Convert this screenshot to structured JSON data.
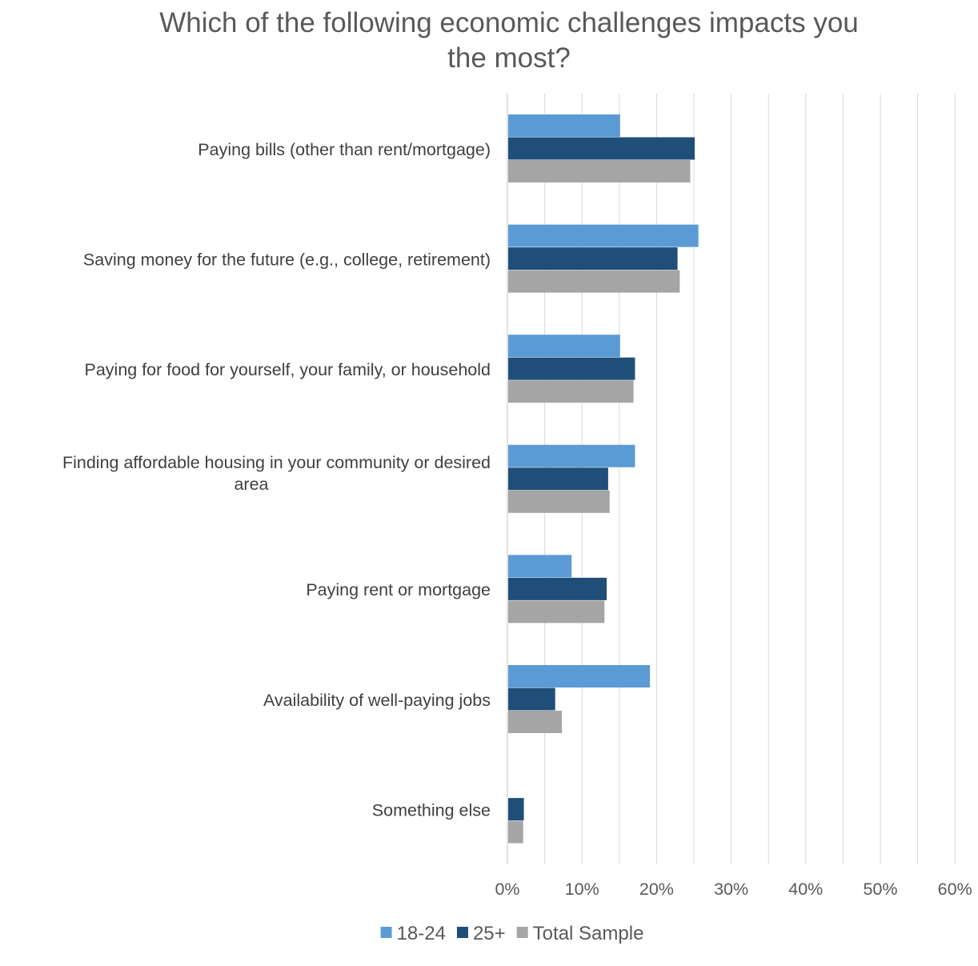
{
  "chart_data": {
    "type": "bar",
    "orientation": "horizontal",
    "title": "Which of the following economic challenges impacts you the most?",
    "title_lines": [
      "Which of the following economic challenges impacts you",
      "the most?"
    ],
    "categories": [
      "Paying bills (other than rent/mortgage)",
      "Saving money for the future (e.g., college, retirement)",
      "Paying for food for yourself, your family, or household",
      "Finding affordable housing in your community or desired area",
      "Paying rent or mortgage",
      "Availability of well-paying jobs",
      "Something else"
    ],
    "category_label_lines": [
      [
        "Paying bills (other than rent/mortgage)"
      ],
      [
        "Saving money for the future (e.g., college, retirement)"
      ],
      [
        "Paying for food for yourself, your family, or household"
      ],
      [
        "Finding affordable housing in your community or desired",
        "area"
      ],
      [
        "Paying rent or mortgage"
      ],
      [
        "Availability of well-paying jobs"
      ],
      [
        "Something else"
      ]
    ],
    "series": [
      {
        "name": "18-24",
        "color": "#5B9BD5",
        "values": [
          15,
          25.5,
          15,
          17,
          8.5,
          19,
          0
        ]
      },
      {
        "name": "25+",
        "color": "#1F4E79",
        "values": [
          25,
          22.7,
          17,
          13.4,
          13.2,
          6.3,
          2.1
        ]
      },
      {
        "name": "Total Sample",
        "color": "#A5A5A5",
        "values": [
          24.4,
          23,
          16.8,
          13.6,
          12.9,
          7.2,
          2
        ]
      }
    ],
    "x_ticks": [
      "0%",
      "10%",
      "20%",
      "30%",
      "40%",
      "50%",
      "60%"
    ],
    "xlim": [
      0,
      60
    ],
    "x_unit": "percent",
    "grid": true,
    "legend_position": "bottom"
  }
}
